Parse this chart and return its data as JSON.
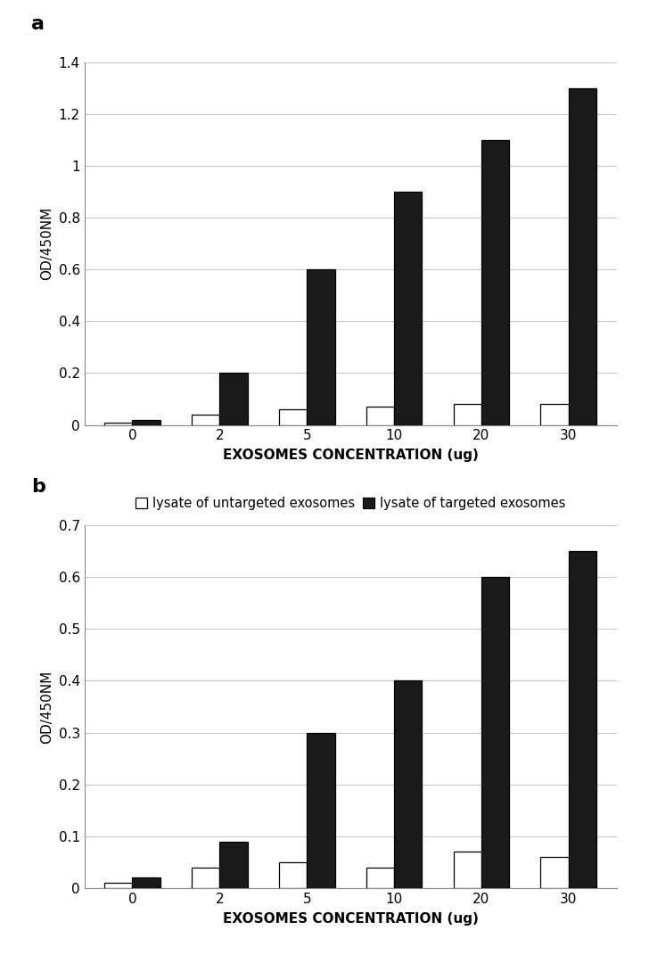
{
  "panel_a": {
    "categories": [
      0,
      2,
      5,
      10,
      20,
      30
    ],
    "untargeted": [
      0.01,
      0.04,
      0.06,
      0.07,
      0.08,
      0.08
    ],
    "targeted": [
      0.02,
      0.2,
      0.6,
      0.9,
      1.1,
      1.3
    ],
    "ylim": [
      0,
      1.4
    ],
    "yticks": [
      0,
      0.2,
      0.4,
      0.6,
      0.8,
      1.0,
      1.2,
      1.4
    ],
    "yticklabels": [
      "0",
      "0.2",
      "0.4",
      "0.6",
      "0.8",
      "1",
      "1.2",
      "1.4"
    ],
    "ylabel": "OD/450NM",
    "xlabel": "EXOSOMES CONCENTRATION (ug)",
    "label_untargeted": "lysate of untargeted exosomes",
    "label_targeted": "lysate of targeted exosomes",
    "panel_label": "a"
  },
  "panel_b": {
    "categories": [
      0,
      2,
      5,
      10,
      20,
      30
    ],
    "untargeted": [
      0.01,
      0.04,
      0.05,
      0.04,
      0.07,
      0.06
    ],
    "targeted": [
      0.02,
      0.09,
      0.3,
      0.4,
      0.6,
      0.65
    ],
    "ylim": [
      0,
      0.7
    ],
    "yticks": [
      0,
      0.1,
      0.2,
      0.3,
      0.4,
      0.5,
      0.6,
      0.7
    ],
    "yticklabels": [
      "0",
      "0.1",
      "0.2",
      "0.3",
      "0.4",
      "0.5",
      "0.6",
      "0.7"
    ],
    "ylabel": "OD/450NM",
    "xlabel": "EXOSOMES CONCENTRATION (ug)",
    "label_untargeted": "untargeted exosomes",
    "label_targeted": "targeted exosomes",
    "panel_label": "b"
  },
  "bar_width": 0.32,
  "color_untargeted": "#ffffff",
  "color_targeted": "#1a1a1a",
  "edgecolor": "#000000",
  "background_color": "#ffffff",
  "grid_color": "#c8c8c8",
  "tick_fontsize": 11,
  "label_fontsize": 11,
  "legend_fontsize": 10.5,
  "panel_label_fontsize": 16
}
